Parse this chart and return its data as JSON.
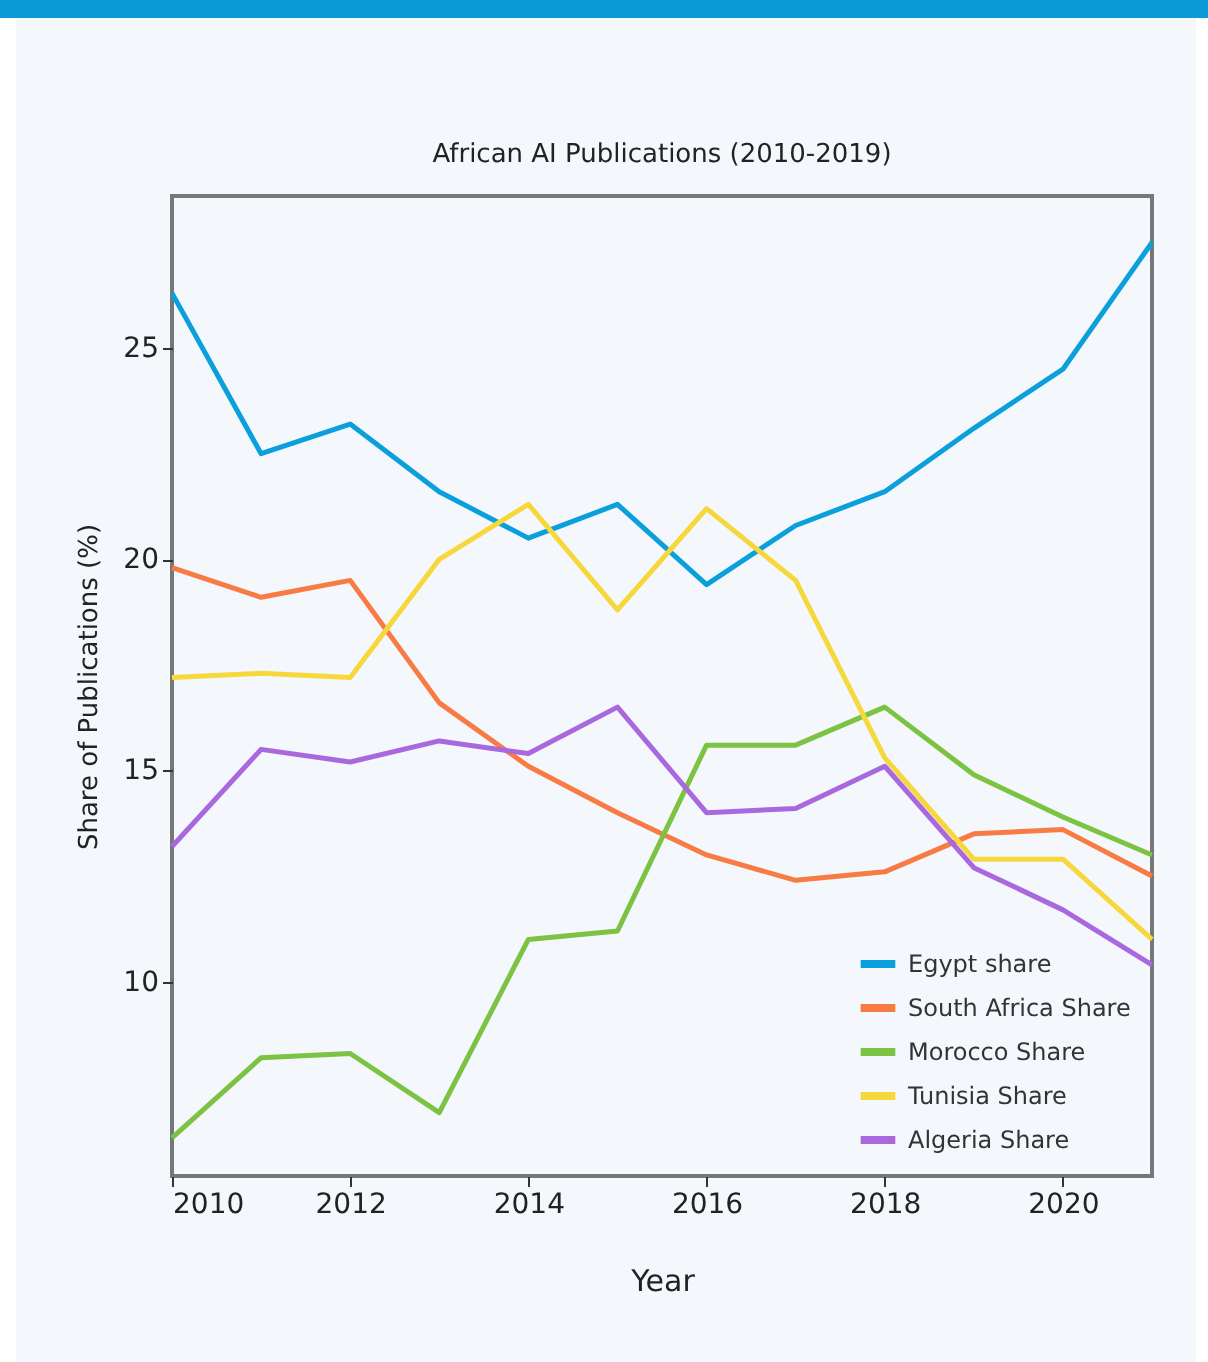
{
  "chart_data": {
    "type": "line",
    "title": "African AI Publications (2010-2019)",
    "xlabel": "Year",
    "ylabel": "Share of Publications (%)",
    "x": [
      2010,
      2011,
      2012,
      2013,
      2014,
      2015,
      2016,
      2017,
      2018,
      2019,
      2020,
      2021
    ],
    "series": [
      {
        "name": "Egypt share",
        "color": "#0b9fdb",
        "values": [
          26.3,
          22.5,
          23.2,
          21.6,
          20.5,
          21.3,
          19.4,
          20.8,
          21.6,
          23.1,
          24.5,
          27.5
        ]
      },
      {
        "name": "South Africa Share",
        "color": "#f77b43",
        "values": [
          19.8,
          19.1,
          19.5,
          16.6,
          15.1,
          14.0,
          13.0,
          12.4,
          12.6,
          13.5,
          13.6,
          12.5
        ]
      },
      {
        "name": "Morocco Share",
        "color": "#7cc243",
        "values": [
          6.3,
          8.2,
          8.3,
          6.9,
          11.0,
          11.2,
          15.6,
          15.6,
          16.5,
          14.9,
          13.9,
          13.0
        ]
      },
      {
        "name": "Tunisia Share",
        "color": "#f6d83c",
        "values": [
          17.2,
          17.3,
          17.2,
          20.0,
          21.3,
          18.8,
          21.2,
          19.5,
          15.3,
          12.9,
          12.9,
          11.0
        ]
      },
      {
        "name": "Algeria Share",
        "color": "#a968de",
        "values": [
          13.2,
          15.5,
          15.2,
          15.7,
          15.4,
          16.5,
          14.0,
          14.1,
          15.1,
          12.7,
          11.7,
          10.4
        ]
      }
    ],
    "xlim": [
      2010,
      2021
    ],
    "xticks": [
      2010,
      2012,
      2014,
      2016,
      2018,
      2020
    ],
    "ylim": [
      5.4,
      28.6
    ],
    "yticks": [
      10,
      15,
      20,
      25
    ],
    "grid": false,
    "legend": "bottom right",
    "marker": "none",
    "line_style": "solid"
  }
}
